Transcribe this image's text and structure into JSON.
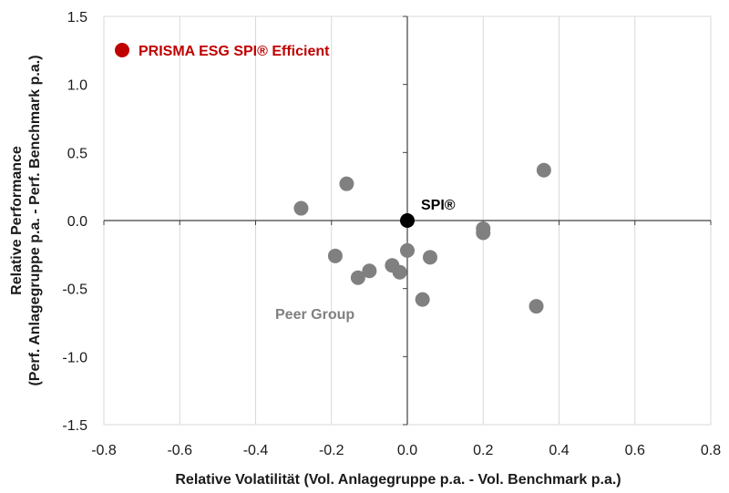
{
  "chart_data": {
    "type": "scatter",
    "x_axis": {
      "label": "Relative Volatilität (Vol. Anlagegruppe p.a. - Vol. Benchmark p.a.)",
      "range": [
        -0.8,
        0.8
      ],
      "ticks": [
        -0.8,
        -0.6,
        -0.4,
        -0.2,
        0.0,
        0.2,
        0.4,
        0.6,
        0.8
      ],
      "tick_labels": [
        "-0.8",
        "-0.6",
        "-0.4",
        "-0.2",
        "0.0",
        "0.2",
        "0.4",
        "0.6",
        "0.8"
      ]
    },
    "y_axis": {
      "label_line1": "Relative Performance",
      "label_line2": "(Perf. Anlagegruppe p.a. - Perf. Benchmark p.a.)",
      "range": [
        -1.5,
        1.5
      ],
      "ticks": [
        1.5,
        1.0,
        0.5,
        0.0,
        -0.5,
        -1.0,
        -1.5
      ],
      "tick_labels": [
        "1.5",
        "1.0",
        "0.5",
        "0.0",
        "-0.5",
        "-1.0",
        "-1.5"
      ]
    },
    "grid": "vertical",
    "series": [
      {
        "name": "Peer Group",
        "color": "#808080",
        "points": [
          {
            "x": -0.28,
            "y": 0.09
          },
          {
            "x": -0.16,
            "y": 0.27
          },
          {
            "x": -0.19,
            "y": -0.26
          },
          {
            "x": -0.13,
            "y": -0.42
          },
          {
            "x": -0.1,
            "y": -0.37
          },
          {
            "x": -0.04,
            "y": -0.33
          },
          {
            "x": -0.02,
            "y": -0.38
          },
          {
            "x": 0.0,
            "y": -0.22
          },
          {
            "x": 0.06,
            "y": -0.27
          },
          {
            "x": 0.04,
            "y": -0.58
          },
          {
            "x": 0.2,
            "y": -0.06
          },
          {
            "x": 0.2,
            "y": -0.09
          },
          {
            "x": 0.36,
            "y": 0.37
          },
          {
            "x": 0.34,
            "y": -0.63
          }
        ]
      },
      {
        "name": "SPI®",
        "color": "#000000",
        "points": [
          {
            "x": 0.0,
            "y": 0.0
          }
        ]
      }
    ],
    "legend": {
      "label": "PRISMA ESG SPI® Efficient",
      "color": "#c00000",
      "placement": "top-left"
    },
    "annotations": [
      {
        "text": "SPI®",
        "color": "#000000"
      },
      {
        "text": "Peer Group",
        "color": "#808080"
      }
    ]
  }
}
